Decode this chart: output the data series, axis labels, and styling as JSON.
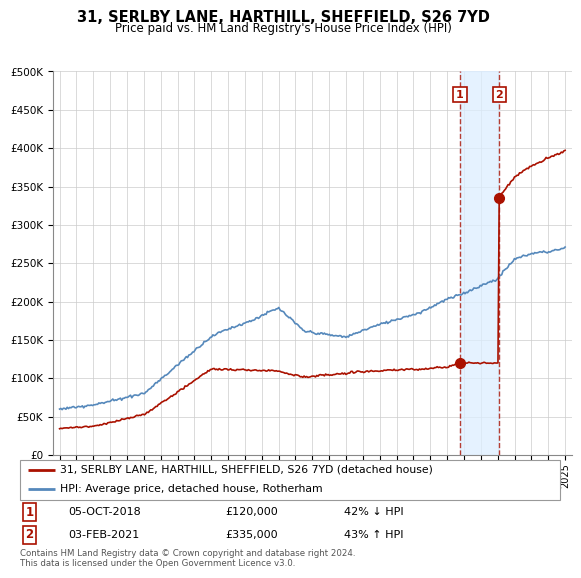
{
  "title": "31, SERLBY LANE, HARTHILL, SHEFFIELD, S26 7YD",
  "subtitle": "Price paid vs. HM Land Registry's House Price Index (HPI)",
  "ylabel_ticks": [
    "£0",
    "£50K",
    "£100K",
    "£150K",
    "£200K",
    "£250K",
    "£300K",
    "£350K",
    "£400K",
    "£450K",
    "£500K"
  ],
  "ytick_values": [
    0,
    50000,
    100000,
    150000,
    200000,
    250000,
    300000,
    350000,
    400000,
    450000,
    500000
  ],
  "xlim_left": 1994.6,
  "xlim_right": 2025.4,
  "ylim": [
    0,
    500000
  ],
  "hpi_color": "#5588bb",
  "price_color": "#aa1100",
  "marker1_date": 2018.76,
  "marker1_price": 120000,
  "marker1_label": "05-OCT-2018",
  "marker1_amount": "£120,000",
  "marker1_change": "42% ↓ HPI",
  "marker2_date": 2021.09,
  "marker2_price": 335000,
  "marker2_label": "03-FEB-2021",
  "marker2_amount": "£335,000",
  "marker2_change": "43% ↑ HPI",
  "legend_line1": "31, SERLBY LANE, HARTHILL, SHEFFIELD, S26 7YD (detached house)",
  "legend_line2": "HPI: Average price, detached house, Rotherham",
  "footer": "Contains HM Land Registry data © Crown copyright and database right 2024.\nThis data is licensed under the Open Government Licence v3.0.",
  "shade_x1": 2018.76,
  "shade_x2": 2021.09
}
